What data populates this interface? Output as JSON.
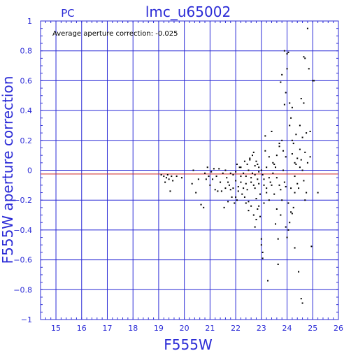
{
  "chart_data": {
    "type": "scatter",
    "title": "lmc_u65002",
    "subtitle": "PC",
    "annotation": "Average aperture correction:  -0.025",
    "xlabel": "F555W",
    "ylabel": "F555W aperture correction",
    "xlim": [
      14.4,
      26
    ],
    "ylim": [
      -1,
      1
    ],
    "x_ticks": [
      15,
      16,
      17,
      18,
      19,
      20,
      21,
      22,
      23,
      24,
      25,
      26
    ],
    "y_ticks": [
      -1,
      -0.8,
      -0.6,
      -0.4,
      -0.2,
      0,
      0.2,
      0.4,
      0.6,
      0.8,
      1
    ],
    "y_tick_labels": [
      "−1",
      "−0.8",
      "−0.6",
      "−0.4",
      "−0.2",
      "0",
      "0.2",
      "0.4",
      "0.6",
      "0.8",
      "1"
    ],
    "grid": true,
    "reference_lines": [
      {
        "y": 0,
        "color": "#2b2bd6"
      },
      {
        "y": -0.025,
        "color": "#cc2222"
      }
    ],
    "points": [
      [
        19.1,
        -0.03
      ],
      [
        19.2,
        -0.04
      ],
      [
        19.25,
        -0.08
      ],
      [
        19.3,
        -0.05
      ],
      [
        19.35,
        -0.03
      ],
      [
        19.4,
        -0.06
      ],
      [
        19.45,
        -0.14
      ],
      [
        19.5,
        -0.04
      ],
      [
        19.55,
        -0.07
      ],
      [
        19.7,
        -0.04
      ],
      [
        19.9,
        -0.05
      ],
      [
        20.3,
        -0.09
      ],
      [
        20.35,
        0.0
      ],
      [
        20.45,
        -0.15
      ],
      [
        20.55,
        -0.06
      ],
      [
        20.65,
        -0.23
      ],
      [
        20.75,
        -0.25
      ],
      [
        20.8,
        -0.02
      ],
      [
        20.85,
        -0.06
      ],
      [
        20.9,
        0.02
      ],
      [
        20.95,
        -0.04
      ],
      [
        21.0,
        -0.1
      ],
      [
        21.05,
        -0.01
      ],
      [
        21.1,
        -0.06
      ],
      [
        21.15,
        0.01
      ],
      [
        21.2,
        -0.13
      ],
      [
        21.25,
        -0.04
      ],
      [
        21.3,
        -0.14
      ],
      [
        21.35,
        0.01
      ],
      [
        21.4,
        -0.08
      ],
      [
        21.45,
        -0.14
      ],
      [
        21.5,
        -0.02
      ],
      [
        21.55,
        -0.25
      ],
      [
        21.6,
        -0.12
      ],
      [
        21.65,
        -0.05
      ],
      [
        21.7,
        -0.21
      ],
      [
        21.75,
        -0.1
      ],
      [
        21.8,
        -0.02
      ],
      [
        21.8,
        -0.13
      ],
      [
        21.85,
        -0.18
      ],
      [
        21.9,
        -0.03
      ],
      [
        21.95,
        -0.22
      ],
      [
        22.0,
        -0.07
      ],
      [
        22.05,
        0.04
      ],
      [
        22.1,
        -0.11
      ],
      [
        22.1,
        -0.14
      ],
      [
        22.15,
        0.02
      ],
      [
        22.2,
        -0.04
      ],
      [
        22.25,
        -0.16
      ],
      [
        22.3,
        -0.02
      ],
      [
        22.35,
        0.06
      ],
      [
        22.4,
        -0.09
      ],
      [
        22.45,
        -0.13
      ],
      [
        22.5,
        0.0
      ],
      [
        22.5,
        -0.21
      ],
      [
        22.55,
        0.07
      ],
      [
        22.6,
        -0.05
      ],
      [
        22.65,
        0.1
      ],
      [
        22.7,
        -0.1
      ],
      [
        22.7,
        0.12
      ],
      [
        22.75,
        -0.03
      ],
      [
        22.8,
        -0.19
      ],
      [
        22.85,
        0.04
      ],
      [
        22.9,
        -0.01
      ],
      [
        22.95,
        -0.16
      ],
      [
        22.5,
        -0.27
      ],
      [
        22.6,
        -0.24
      ],
      [
        22.7,
        -0.3
      ],
      [
        22.75,
        -0.38
      ],
      [
        22.8,
        -0.33
      ],
      [
        22.85,
        -0.26
      ],
      [
        22.9,
        -0.24
      ],
      [
        22.95,
        -0.31
      ],
      [
        23.0,
        -0.46
      ],
      [
        23.0,
        -0.5
      ],
      [
        23.05,
        -0.55
      ],
      [
        23.05,
        -0.59
      ],
      [
        23.1,
        -0.22
      ],
      [
        23.1,
        -0.06
      ],
      [
        23.15,
        0.13
      ],
      [
        23.15,
        0.23
      ],
      [
        23.2,
        -0.12
      ],
      [
        23.2,
        0.02
      ],
      [
        23.25,
        -0.74
      ],
      [
        23.3,
        -0.2
      ],
      [
        23.3,
        0.09
      ],
      [
        23.35,
        -0.08
      ],
      [
        23.4,
        0.26
      ],
      [
        23.45,
        -0.02
      ],
      [
        23.5,
        -0.16
      ],
      [
        23.5,
        0.04
      ],
      [
        23.55,
        -0.36
      ],
      [
        23.6,
        -0.26
      ],
      [
        23.6,
        0.1
      ],
      [
        23.65,
        -0.46
      ],
      [
        23.65,
        -0.63
      ],
      [
        23.7,
        0.18
      ],
      [
        23.7,
        0.16
      ],
      [
        23.75,
        -0.3
      ],
      [
        23.8,
        -0.2
      ],
      [
        23.8,
        0.2
      ],
      [
        23.85,
        0.13
      ],
      [
        23.9,
        -0.08
      ],
      [
        23.9,
        0.8
      ],
      [
        23.95,
        -0.38
      ],
      [
        23.95,
        0.09
      ],
      [
        23.75,
        0.59
      ],
      [
        23.8,
        0.64
      ],
      [
        23.9,
        0.44
      ],
      [
        23.95,
        0.52
      ],
      [
        24.0,
        0.68
      ],
      [
        24.0,
        0.78
      ],
      [
        24.05,
        0.79
      ],
      [
        24.1,
        0.45
      ],
      [
        24.1,
        0.3
      ],
      [
        24.15,
        0.35
      ],
      [
        24.2,
        0.11
      ],
      [
        24.2,
        0.2
      ],
      [
        24.2,
        0.42
      ],
      [
        24.25,
        0.18
      ],
      [
        24.3,
        0.05
      ],
      [
        24.3,
        -0.04
      ],
      [
        24.0,
        -0.45
      ],
      [
        24.05,
        -0.4
      ],
      [
        24.1,
        -0.35
      ],
      [
        24.15,
        -0.28
      ],
      [
        24.2,
        -0.29
      ],
      [
        24.25,
        -0.25
      ],
      [
        24.3,
        -0.52
      ],
      [
        24.3,
        -0.15
      ],
      [
        24.35,
        0.04
      ],
      [
        24.35,
        0.24
      ],
      [
        24.4,
        -0.09
      ],
      [
        24.45,
        -0.68
      ],
      [
        24.5,
        0.02
      ],
      [
        24.5,
        0.14
      ],
      [
        24.55,
        -0.86
      ],
      [
        24.6,
        -0.89
      ],
      [
        24.6,
        0.22
      ],
      [
        24.65,
        -0.07
      ],
      [
        24.65,
        0.76
      ],
      [
        24.7,
        0.75
      ],
      [
        24.7,
        -0.2
      ],
      [
        24.75,
        -0.15
      ],
      [
        24.8,
        0.95
      ],
      [
        24.85,
        0.68
      ],
      [
        24.9,
        0.09
      ],
      [
        24.9,
        0.26
      ],
      [
        24.95,
        -0.51
      ],
      [
        23.0,
        0.0
      ],
      [
        23.05,
        -0.03
      ],
      [
        22.9,
        0.02
      ],
      [
        22.85,
        -0.06
      ],
      [
        23.1,
        -0.1
      ],
      [
        23.2,
        -0.15
      ],
      [
        23.3,
        -0.05
      ],
      [
        23.4,
        -0.1
      ],
      [
        23.45,
        0.05
      ],
      [
        23.55,
        0.02
      ],
      [
        23.6,
        -0.05
      ],
      [
        23.7,
        -0.1
      ],
      [
        23.75,
        -0.13
      ],
      [
        23.85,
        0.0
      ],
      [
        23.95,
        -0.11
      ],
      [
        22.2,
        -0.08
      ],
      [
        22.3,
        -0.12
      ],
      [
        22.4,
        -0.04
      ],
      [
        22.6,
        -0.08
      ],
      [
        22.65,
        -0.02
      ],
      [
        22.75,
        -0.12
      ],
      [
        22.9,
        -0.09
      ],
      [
        22.2,
        0.02
      ],
      [
        22.45,
        0.04
      ],
      [
        22.55,
        0.08
      ],
      [
        22.75,
        0.03
      ],
      [
        22.8,
        0.06
      ],
      [
        21.6,
        0.0
      ],
      [
        21.7,
        -0.08
      ],
      [
        21.9,
        -0.12
      ],
      [
        22.0,
        -0.18
      ],
      [
        22.0,
        -0.01
      ],
      [
        22.05,
        -0.2
      ],
      [
        22.35,
        -0.18
      ],
      [
        22.4,
        -0.22
      ],
      [
        24.05,
        -0.22
      ],
      [
        24.15,
        -0.12
      ],
      [
        24.4,
        0.08
      ],
      [
        24.45,
        -0.12
      ],
      [
        24.5,
        0.3
      ],
      [
        24.55,
        0.07
      ],
      [
        24.6,
        0.0
      ],
      [
        24.7,
        0.12
      ],
      [
        24.8,
        0.05
      ],
      [
        25.0,
        0.6
      ],
      [
        25.05,
        0.6
      ],
      [
        25.2,
        -0.15
      ],
      [
        24.75,
        0.25
      ],
      [
        24.65,
        0.45
      ],
      [
        24.55,
        0.48
      ]
    ]
  }
}
